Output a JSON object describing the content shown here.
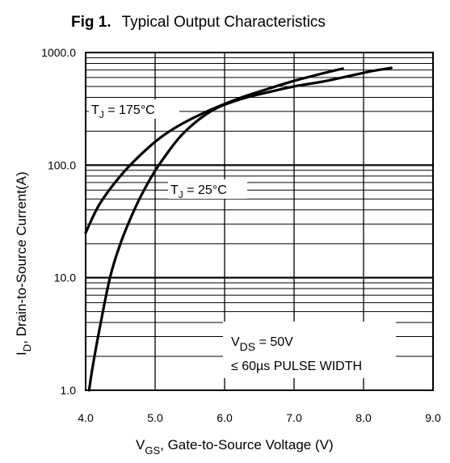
{
  "chart_data": {
    "type": "line",
    "title_prefix": "Fig 1.",
    "title_text": "Typical Output Characteristics",
    "xlabel": {
      "main": "V",
      "sub": "GS",
      "rest": ", Gate-to-Source Voltage (V)"
    },
    "ylabel": {
      "main": "I",
      "sub": "D",
      "rest": ", Drain-to-Source Current(A)"
    },
    "x_scale": "linear",
    "y_scale": "log",
    "xlim": [
      4.0,
      9.0
    ],
    "ylim": [
      1.0,
      1000.0
    ],
    "x_ticks": [
      "4.0",
      "5.0",
      "6.0",
      "7.0",
      "8.0",
      "9.0"
    ],
    "y_ticks": [
      "1.0",
      "10.0",
      "100.0",
      "1000.0"
    ],
    "grid": true,
    "series": [
      {
        "name": "175°C",
        "label_main": "T",
        "label_sub": "J",
        "label_rest": " = 175°C",
        "x": [
          4.0,
          4.2,
          4.5,
          4.8,
          5.1,
          5.4,
          5.8,
          6.2,
          6.6,
          7.0,
          7.4,
          7.7
        ],
        "y": [
          25,
          45,
          80,
          125,
          180,
          235,
          310,
          390,
          470,
          560,
          650,
          720
        ]
      },
      {
        "name": "25°C",
        "label_main": "T",
        "label_sub": "J",
        "label_rest": " = 25°C",
        "x": [
          4.05,
          4.1,
          4.2,
          4.35,
          4.5,
          4.7,
          4.9,
          5.1,
          5.4,
          5.8,
          6.2,
          6.6,
          7.0,
          7.4,
          7.8,
          8.1,
          8.4
        ],
        "y": [
          1.0,
          1.6,
          3.5,
          10,
          20,
          40,
          70,
          110,
          190,
          300,
          380,
          440,
          500,
          550,
          620,
          680,
          730
        ]
      }
    ],
    "annotation": {
      "line1_main": "V",
      "line1_sub": "DS",
      "line1_rest": " = 50V",
      "line2": "≤ 60µs PULSE WIDTH"
    },
    "colors": {
      "curve": "#000000",
      "grid": "#000000",
      "background": "#ffffff"
    }
  }
}
